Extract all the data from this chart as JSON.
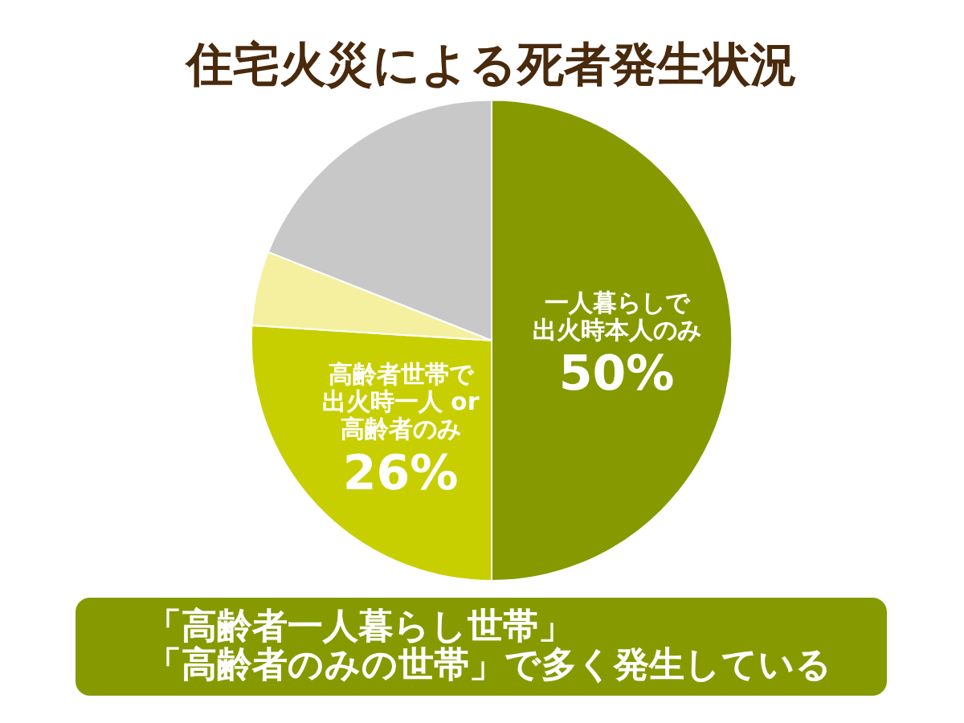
{
  "chart_data": {
    "type": "pie",
    "title": "住宅火災による死者発生状況",
    "categories": [
      "一人暮らしで出火時本人のみ",
      "高齢者世帯で出火時一人 or 高齢者のみ",
      null,
      null
    ],
    "values": [
      50,
      26,
      5,
      19
    ],
    "colors": [
      "#869a00",
      "#c8cf00",
      "#f5f0a0",
      "#c8c8c8"
    ],
    "value_labels": [
      "50%",
      "26%",
      null,
      null
    ],
    "annotations": [
      "「高齢者一人暮らし世帯」「高齢者のみの世帯」で多く発生している"
    ],
    "legend": false
  }
}
